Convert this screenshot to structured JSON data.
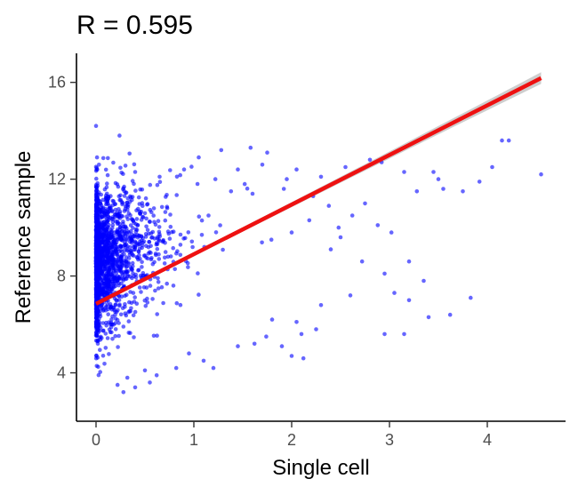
{
  "chart_data": {
    "type": "scatter",
    "title": "R = 0.595",
    "xlabel": "Single cell",
    "ylabel": "Reference sample",
    "xlim": [
      -0.2,
      4.8
    ],
    "ylim": [
      2.0,
      17.2
    ],
    "x_ticks": [
      0,
      1,
      2,
      3,
      4
    ],
    "y_ticks": [
      4,
      8,
      12,
      16
    ],
    "grid": false,
    "legend": "none",
    "point_color": "#0000ff",
    "line_color": "#ee1111",
    "band_color": "#bdbdbd",
    "regression": {
      "intercept": 6.85,
      "slope": 2.05,
      "x_range": [
        0,
        4.55
      ],
      "se": 0.12
    },
    "points": [
      [
        0.0,
        14.2
      ],
      [
        0.24,
        13.8
      ],
      [
        0.01,
        12.9
      ],
      [
        0.03,
        12.6
      ],
      [
        0.4,
        12.3
      ],
      [
        0.65,
        12.1
      ],
      [
        0.9,
        12.4
      ],
      [
        1.05,
        12.9
      ],
      [
        1.28,
        13.2
      ],
      [
        1.58,
        13.3
      ],
      [
        1.75,
        13.1
      ],
      [
        2.05,
        12.4
      ],
      [
        1.95,
        12.0
      ],
      [
        2.3,
        12.1
      ],
      [
        2.55,
        12.5
      ],
      [
        2.8,
        12.8
      ],
      [
        2.92,
        12.7
      ],
      [
        3.15,
        12.3
      ],
      [
        3.5,
        12.0
      ],
      [
        3.55,
        11.6
      ],
      [
        3.75,
        11.5
      ],
      [
        3.92,
        11.9
      ],
      [
        4.05,
        12.5
      ],
      [
        4.15,
        13.6
      ],
      [
        4.22,
        13.6
      ],
      [
        4.55,
        12.2
      ],
      [
        3.45,
        12.3
      ],
      [
        3.28,
        11.5
      ],
      [
        2.75,
        11.0
      ],
      [
        2.62,
        10.5
      ],
      [
        2.88,
        10.1
      ],
      [
        3.02,
        9.8
      ],
      [
        2.5,
        9.6
      ],
      [
        2.4,
        9.1
      ],
      [
        2.72,
        8.6
      ],
      [
        2.95,
        8.1
      ],
      [
        3.2,
        8.6
      ],
      [
        3.35,
        7.8
      ],
      [
        3.05,
        7.3
      ],
      [
        2.6,
        7.2
      ],
      [
        2.3,
        6.8
      ],
      [
        2.05,
        6.1
      ],
      [
        1.8,
        6.2
      ],
      [
        2.1,
        5.6
      ],
      [
        3.2,
        7.0
      ],
      [
        3.4,
        6.3
      ],
      [
        3.62,
        6.4
      ],
      [
        3.83,
        7.1
      ],
      [
        2.95,
        5.6
      ],
      [
        3.15,
        5.6
      ],
      [
        2.0,
        4.7
      ],
      [
        2.12,
        4.6
      ],
      [
        1.45,
        5.1
      ],
      [
        1.1,
        4.5
      ],
      [
        0.95,
        4.8
      ],
      [
        0.82,
        4.2
      ],
      [
        0.62,
        3.9
      ],
      [
        0.5,
        4.1
      ],
      [
        0.55,
        3.6
      ],
      [
        0.4,
        3.4
      ],
      [
        0.32,
        3.8
      ],
      [
        0.28,
        3.2
      ],
      [
        0.22,
        3.5
      ],
      [
        1.2,
        4.2
      ],
      [
        1.62,
        5.2
      ],
      [
        1.74,
        5.5
      ],
      [
        1.9,
        5.1
      ],
      [
        2.25,
        5.8
      ],
      [
        1.6,
        11.4
      ],
      [
        1.52,
        11.8
      ],
      [
        1.38,
        11.5
      ],
      [
        1.22,
        12.0
      ],
      [
        1.45,
        12.4
      ],
      [
        1.7,
        12.6
      ],
      [
        1.92,
        11.6
      ],
      [
        2.22,
        11.3
      ],
      [
        2.38,
        10.9
      ],
      [
        2.18,
        10.3
      ],
      [
        2.0,
        9.8
      ],
      [
        2.48,
        10.0
      ]
    ],
    "dense": {
      "count": 2200,
      "x_max": 4.2,
      "y_center": 8.6,
      "y_sd": 1.45,
      "y_min": 2.8,
      "y_max": 12.8
    }
  }
}
